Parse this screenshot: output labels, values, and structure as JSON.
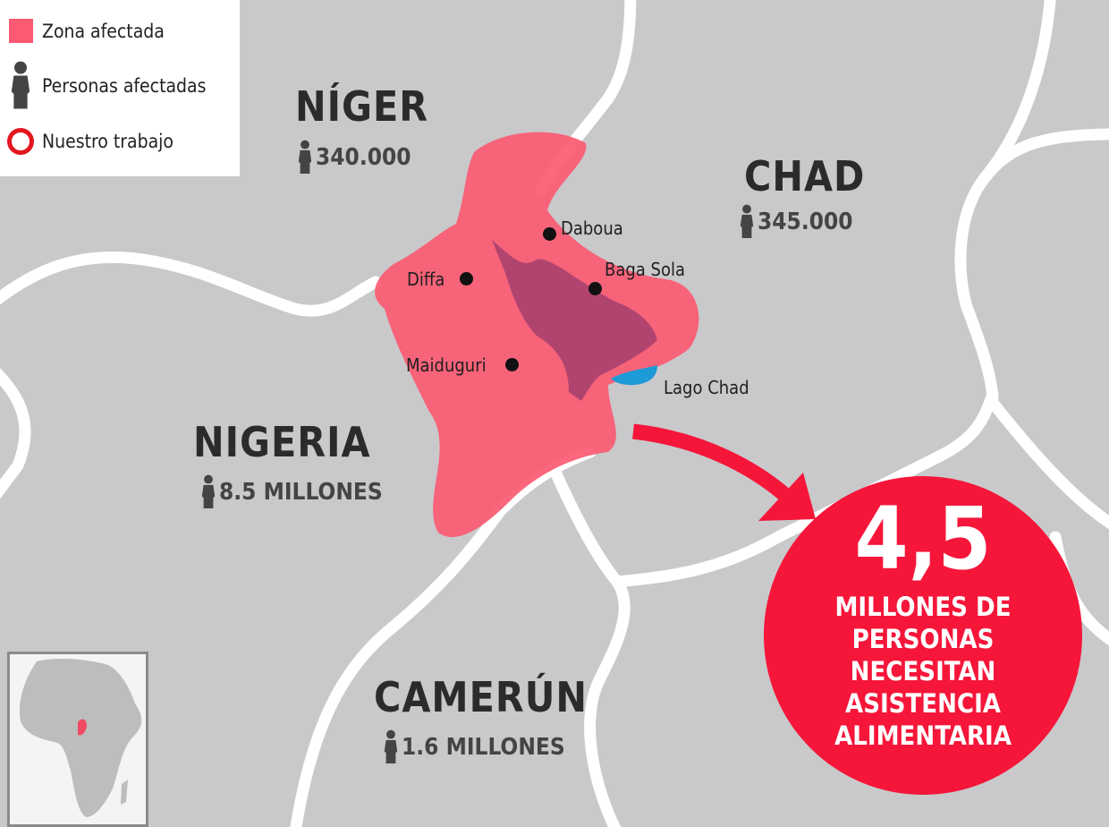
{
  "legend": {
    "items": [
      {
        "label": "Zona afectada",
        "icon": "pink-square-icon"
      },
      {
        "label": "Personas afectadas",
        "icon": "person-icon"
      },
      {
        "label": "Nuestro trabajo",
        "icon": "red-ring-icon"
      }
    ]
  },
  "countries": [
    {
      "name": "NÍGER",
      "affected": "340.000"
    },
    {
      "name": "CHAD",
      "affected": "345.000"
    },
    {
      "name": "NIGERIA",
      "affected": "8.5 MILLONES"
    },
    {
      "name": "CAMERÚN",
      "affected": "1.6 MILLONES"
    }
  ],
  "places": [
    "Daboua",
    "Diffa",
    "Baga Sola",
    "Maiduguri",
    "Lago Chad"
  ],
  "callout": {
    "number": "4,5",
    "text": [
      "MILLONES DE",
      "PERSONAS",
      "NECESITAN",
      "ASISTENCIA",
      "ALIMENTARIA"
    ]
  },
  "colors": {
    "affected_zone": "#fb5a72",
    "lake_region": "#a8406e",
    "lake": "#1e9ad6",
    "callout": "#f5163a",
    "land": "#c9c9cb",
    "borders": "#ffffff"
  }
}
